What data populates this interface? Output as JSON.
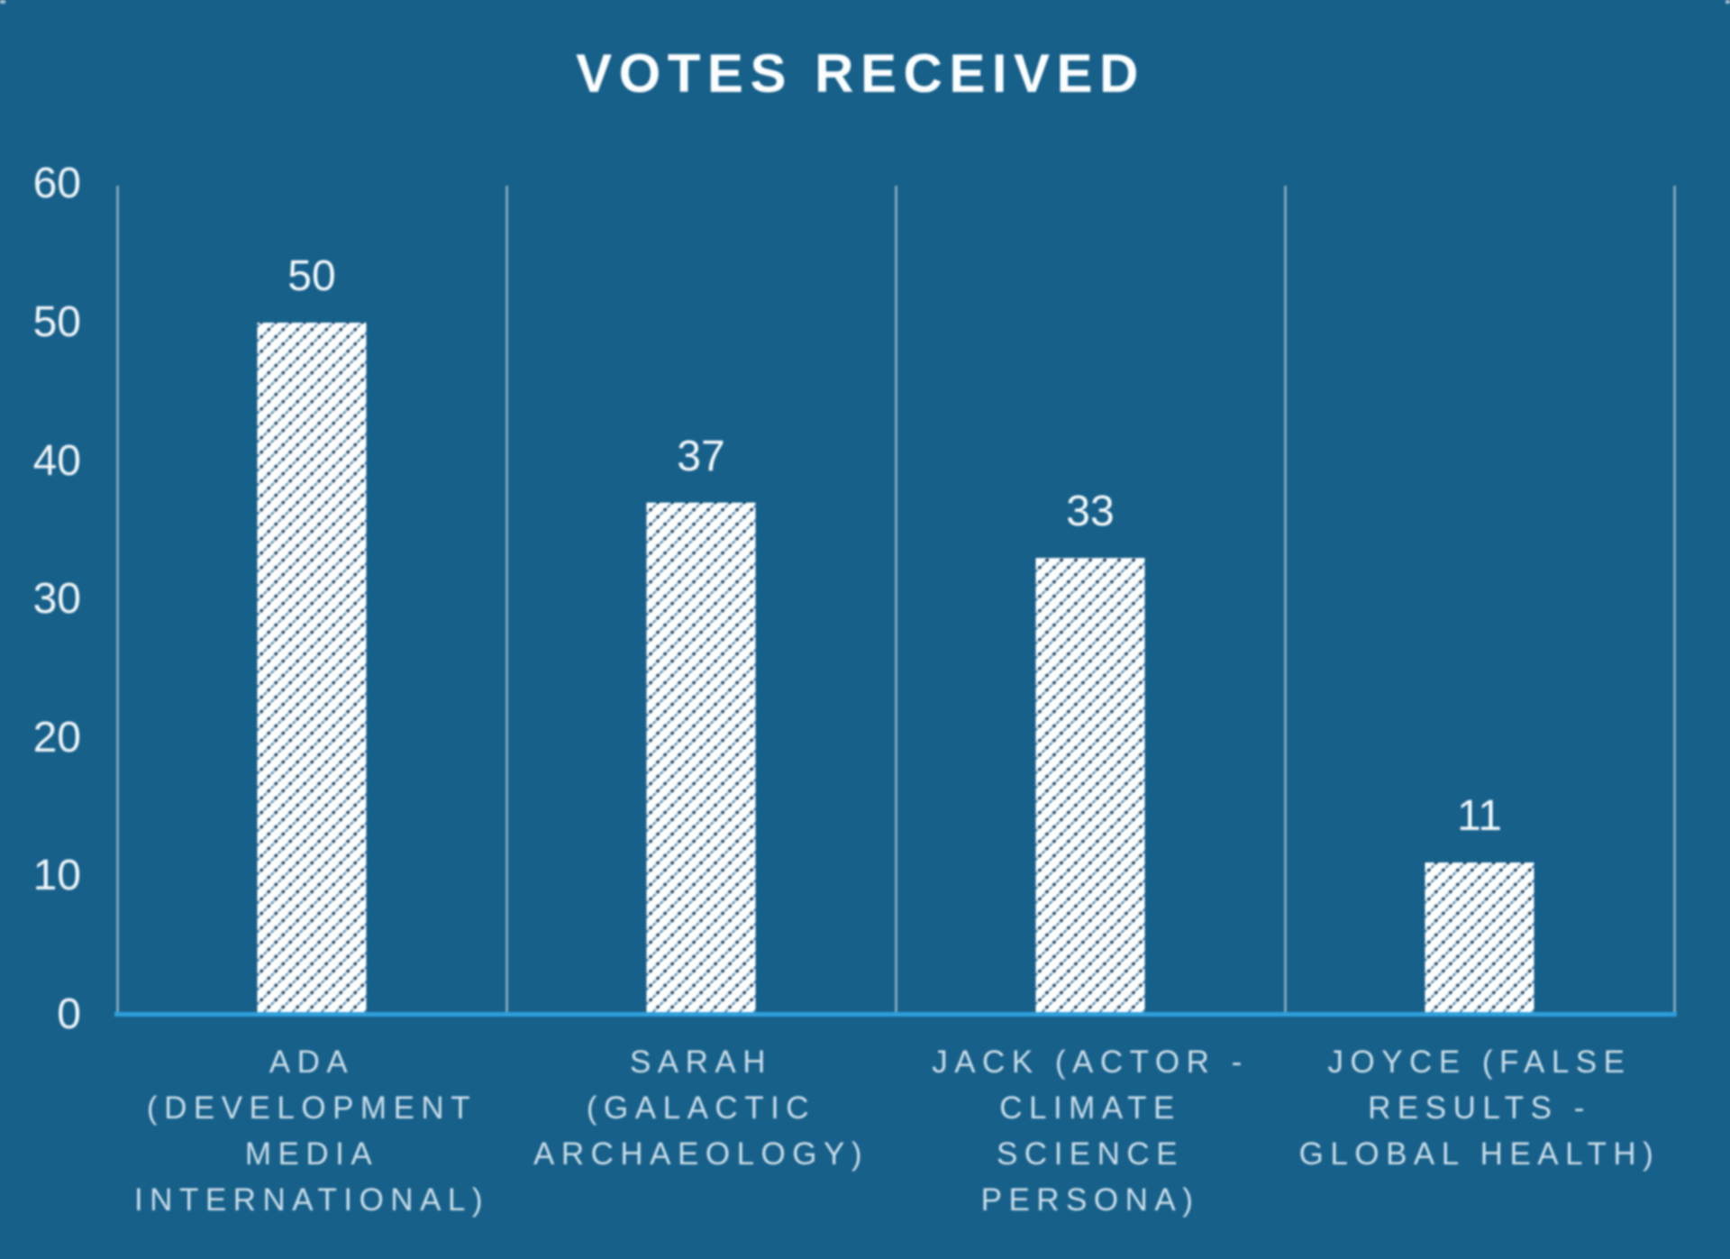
{
  "chart_data": {
    "type": "bar",
    "title": "VOTES RECEIVED",
    "categories": [
      "ADA\n(DEVELOPMENT\nMEDIA\nINTERNATIONAL)",
      "SARAH\n(GALACTIC\nARCHAEOLOGY)",
      "JACK (ACTOR -\nCLIMATE\nSCIENCE\nPERSONA)",
      "JOYCE (FALSE\nRESULTS -\nGLOBAL HEALTH)"
    ],
    "values": [
      50,
      37,
      33,
      11
    ],
    "y_ticks": [
      0,
      10,
      20,
      30,
      40,
      50,
      60
    ],
    "ylim": [
      0,
      60
    ],
    "xlabel": "",
    "ylabel": "",
    "grid": "vertical-category-boundaries",
    "legend": "none",
    "bar_fill": "white with diagonal dash-dot hatch"
  },
  "style": {
    "background": "#16608A",
    "axis_line_color": "#2E9FDC",
    "gridline_color": "#7FA6BD",
    "title_color": "#FBFDFE",
    "tick_label_color": "#EFF5F9",
    "category_label_color": "#CBDEE9",
    "hatch_dot_color": "#0E3356",
    "hatch_dash_color": "#3E7FA4",
    "hatch_background": "#FFFFFF"
  }
}
